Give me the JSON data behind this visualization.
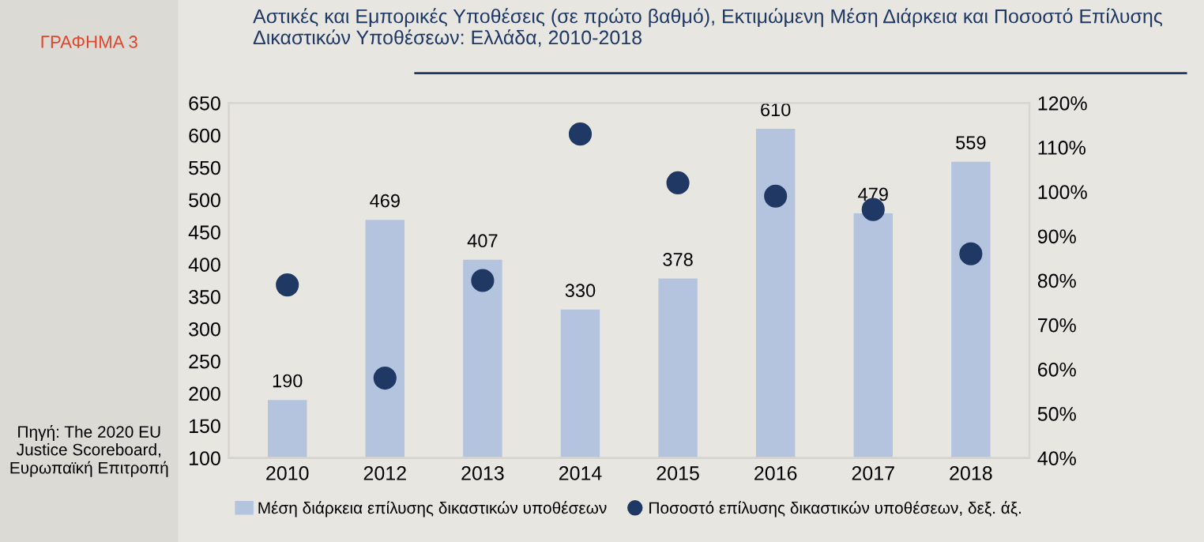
{
  "chart_data": {
    "type": "bar",
    "title": "Αστικές και Εμπορικές Υποθέσεις (σε πρώτο βαθμό), Εκτιμώμενη Μέση Διάρκεια και Ποσοστό Επίλυσης Δικαστικών Υποθέσεων: Ελλάδα, 2010-2018",
    "categories": [
      "2010",
      "2012",
      "2013",
      "2014",
      "2015",
      "2016",
      "2017",
      "2018"
    ],
    "series": [
      {
        "name": "Μέση διάρκεια επίλυσης δικαστικών υποθέσεων",
        "color": "#b4c4de",
        "values": [
          190,
          469,
          407,
          330,
          378,
          610,
          479,
          559
        ],
        "value_labels": [
          "190",
          "469",
          "407",
          "330",
          "378",
          "610",
          "479",
          "559"
        ]
      },
      {
        "name": "Ποσοστό επίλυσης δικαστικών υποθέσεων, δεξ. άξ.",
        "type": "scatter",
        "axis": "y2",
        "color": "#1f3864",
        "values": [
          79,
          58,
          80,
          113,
          102,
          99,
          96,
          86
        ]
      }
    ],
    "ylim": [
      100,
      650
    ],
    "yticks": [
      100,
      150,
      200,
      250,
      300,
      350,
      400,
      450,
      500,
      550,
      600,
      650
    ],
    "y2lim": [
      40,
      120
    ],
    "y2ticks": [
      {
        "value": 40,
        "label": "40%"
      },
      {
        "value": 50,
        "label": "50%"
      },
      {
        "value": 60,
        "label": "60%"
      },
      {
        "value": 70,
        "label": "70%"
      },
      {
        "value": 80,
        "label": "80%"
      },
      {
        "value": 90,
        "label": "90%"
      },
      {
        "value": 100,
        "label": "100%"
      },
      {
        "value": 110,
        "label": "110%"
      },
      {
        "value": 120,
        "label": "120%"
      }
    ],
    "marker": "circle",
    "grid": false,
    "legend": "bottom",
    "annotations": [
      "ΓΡΑΦΗΜΑ 3",
      "Πηγή: The 2020 EU Justice Scoreboard, Ευρωπαϊκή Επιτροπή"
    ]
  }
}
